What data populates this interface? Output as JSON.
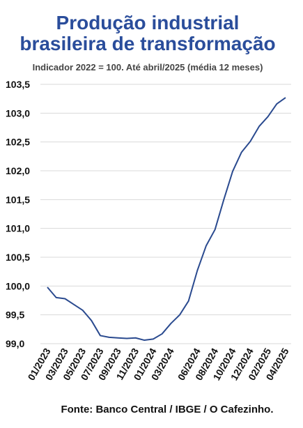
{
  "chart_data": {
    "type": "line",
    "title_lines": [
      "Produção industrial",
      "brasileira de transformação"
    ],
    "subtitle": "Indicador 2022 = 100. Até abril/2025 (média 12 meses)",
    "source": "Fonte: Banco Central / IBGE / O Cafezinho.",
    "categories": [
      "01/2023",
      null,
      "03/2023",
      null,
      "05/2023",
      null,
      "07/2023",
      null,
      "09/2023",
      null,
      "11/2023",
      null,
      "01/2024",
      null,
      "03/2024",
      null,
      null,
      "06/2024",
      null,
      "08/2024",
      null,
      "10/2024",
      null,
      "12/2024",
      null,
      "02/2025",
      null,
      "04/2025"
    ],
    "series": [
      {
        "name": "Produção industrial",
        "color": "#2a4a8f",
        "values": [
          99.98,
          99.8,
          99.78,
          99.68,
          99.58,
          99.4,
          99.14,
          99.11,
          99.1,
          99.09,
          99.1,
          99.06,
          99.08,
          99.17,
          99.35,
          99.5,
          99.74,
          100.27,
          100.7,
          100.98,
          101.5,
          101.99,
          102.32,
          102.51,
          102.77,
          102.94,
          103.16,
          103.27
        ]
      }
    ],
    "ylim": [
      99.0,
      103.5
    ],
    "yticks": [
      {
        "value": 99.0,
        "label": "99,0"
      },
      {
        "value": 99.5,
        "label": "99,5"
      },
      {
        "value": 100.0,
        "label": "100,0"
      },
      {
        "value": 100.5,
        "label": "100,5"
      },
      {
        "value": 101.0,
        "label": "101,0"
      },
      {
        "value": 101.5,
        "label": "101,5"
      },
      {
        "value": 102.0,
        "label": "102,0"
      },
      {
        "value": 102.5,
        "label": "102,5"
      },
      {
        "value": 103.0,
        "label": "103,0"
      },
      {
        "value": 103.5,
        "label": "103,5"
      }
    ],
    "grid": true
  }
}
